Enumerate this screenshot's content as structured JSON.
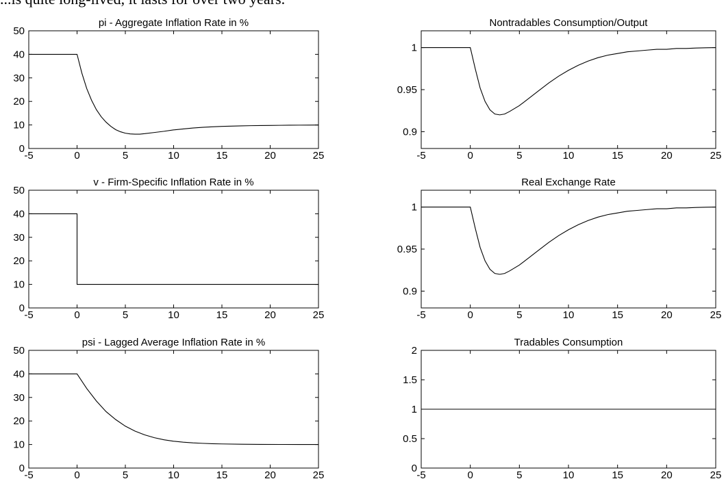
{
  "page": {
    "header_text": "...is quite long-lived, it lasts for over two years."
  },
  "chart_data": [
    {
      "type": "line",
      "title": "pi - Aggregate Inflation Rate in %",
      "xlim": [
        -5,
        25
      ],
      "ylim": [
        0,
        50
      ],
      "xticks": [
        -5,
        0,
        5,
        10,
        15,
        20,
        25
      ],
      "yticks": [
        0,
        10,
        20,
        30,
        40,
        50
      ],
      "ytick_labels": [
        "0",
        "10",
        "20",
        "30",
        "40",
        "50"
      ],
      "series": [
        {
          "x": [
            -5,
            0,
            0.5,
            1,
            1.5,
            2,
            2.5,
            3,
            3.5,
            4,
            4.5,
            5,
            5.5,
            6,
            6.5,
            7,
            8,
            9,
            10,
            11,
            12,
            13,
            14,
            15,
            16,
            17,
            18,
            19,
            20,
            21,
            22,
            23,
            24,
            25
          ],
          "y": [
            40,
            40,
            32,
            25.5,
            20.5,
            16.5,
            13.5,
            11.2,
            9.4,
            8,
            7.1,
            6.5,
            6.2,
            6.1,
            6.1,
            6.3,
            6.8,
            7.3,
            7.9,
            8.3,
            8.7,
            9,
            9.2,
            9.4,
            9.5,
            9.6,
            9.7,
            9.75,
            9.8,
            9.85,
            9.9,
            9.92,
            9.95,
            9.97
          ]
        }
      ]
    },
    {
      "type": "line",
      "title": "v - Firm-Specific Inflation Rate in %",
      "xlim": [
        -5,
        25
      ],
      "ylim": [
        0,
        50
      ],
      "xticks": [
        -5,
        0,
        5,
        10,
        15,
        20,
        25
      ],
      "yticks": [
        0,
        10,
        20,
        30,
        40,
        50
      ],
      "ytick_labels": [
        "0",
        "10",
        "20",
        "30",
        "40",
        "50"
      ],
      "series": [
        {
          "x": [
            -5,
            0,
            0,
            25
          ],
          "y": [
            40,
            40,
            10,
            10
          ]
        }
      ]
    },
    {
      "type": "line",
      "title": "psi - Lagged Average Inflation Rate in %",
      "xlim": [
        -5,
        25
      ],
      "ylim": [
        0,
        50
      ],
      "xticks": [
        -5,
        0,
        5,
        10,
        15,
        20,
        25
      ],
      "yticks": [
        0,
        10,
        20,
        30,
        40,
        50
      ],
      "ytick_labels": [
        "0",
        "10",
        "20",
        "30",
        "40",
        "50"
      ],
      "series": [
        {
          "x": [
            -5,
            0,
            1,
            2,
            3,
            4,
            5,
            6,
            7,
            8,
            9,
            10,
            11,
            12,
            13,
            14,
            15,
            17,
            19,
            21,
            23,
            25
          ],
          "y": [
            40,
            40,
            33.8,
            28.5,
            24,
            20.6,
            17.8,
            15.7,
            14.1,
            12.9,
            12,
            11.4,
            11,
            10.7,
            10.5,
            10.35,
            10.25,
            10.12,
            10.06,
            10.03,
            10.01,
            10
          ]
        }
      ]
    },
    {
      "type": "line",
      "title": "Nontradables Consumption/Output",
      "xlim": [
        -5,
        25
      ],
      "ylim": [
        0.88,
        1.02
      ],
      "xticks": [
        -5,
        0,
        5,
        10,
        15,
        20,
        25
      ],
      "yticks": [
        0.9,
        0.95,
        1
      ],
      "ytick_labels": [
        "0.9",
        "0.95",
        "1"
      ],
      "series": [
        {
          "x": [
            -5,
            0,
            0.5,
            1,
            1.5,
            2,
            2.5,
            3,
            3.5,
            4,
            5,
            6,
            7,
            8,
            9,
            10,
            11,
            12,
            13,
            14,
            15,
            16,
            17,
            18,
            19,
            20,
            21,
            22,
            23,
            24,
            25
          ],
          "y": [
            1,
            1,
            0.975,
            0.952,
            0.936,
            0.926,
            0.921,
            0.92,
            0.921,
            0.924,
            0.931,
            0.94,
            0.949,
            0.958,
            0.966,
            0.973,
            0.979,
            0.984,
            0.988,
            0.991,
            0.993,
            0.995,
            0.996,
            0.997,
            0.998,
            0.998,
            0.999,
            0.999,
            0.9995,
            0.9998,
            1
          ]
        }
      ]
    },
    {
      "type": "line",
      "title": "Real Exchange Rate",
      "xlim": [
        -5,
        25
      ],
      "ylim": [
        0.88,
        1.02
      ],
      "xticks": [
        -5,
        0,
        5,
        10,
        15,
        20,
        25
      ],
      "yticks": [
        0.9,
        0.95,
        1
      ],
      "ytick_labels": [
        "0.9",
        "0.95",
        "1"
      ],
      "series": [
        {
          "x": [
            -5,
            0,
            0.5,
            1,
            1.5,
            2,
            2.5,
            3,
            3.5,
            4,
            5,
            6,
            7,
            8,
            9,
            10,
            11,
            12,
            13,
            14,
            15,
            16,
            17,
            18,
            19,
            20,
            21,
            22,
            23,
            24,
            25
          ],
          "y": [
            1,
            1,
            0.975,
            0.952,
            0.936,
            0.926,
            0.921,
            0.92,
            0.921,
            0.924,
            0.931,
            0.94,
            0.949,
            0.958,
            0.966,
            0.973,
            0.979,
            0.984,
            0.988,
            0.991,
            0.993,
            0.995,
            0.996,
            0.997,
            0.998,
            0.998,
            0.999,
            0.999,
            0.9995,
            0.9998,
            1
          ]
        }
      ]
    },
    {
      "type": "line",
      "title": "Tradables Consumption",
      "xlim": [
        -5,
        25
      ],
      "ylim": [
        0,
        2
      ],
      "xticks": [
        -5,
        0,
        5,
        10,
        15,
        20,
        25
      ],
      "yticks": [
        0,
        0.5,
        1,
        1.5,
        2
      ],
      "ytick_labels": [
        "0",
        "0.5",
        "1",
        "1.5",
        "2"
      ],
      "series": [
        {
          "x": [
            -5,
            25
          ],
          "y": [
            1,
            1
          ]
        }
      ]
    }
  ]
}
